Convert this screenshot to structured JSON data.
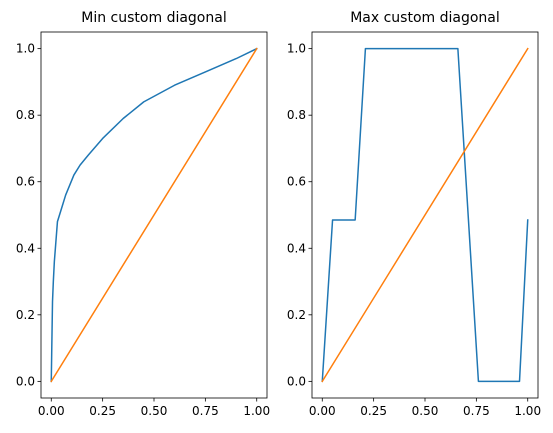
{
  "chart_data": [
    {
      "type": "line",
      "title": "Min custom diagonal",
      "xlabel": "",
      "ylabel": "",
      "xlim": [
        -0.05,
        1.05
      ],
      "ylim": [
        -0.05,
        1.05
      ],
      "xticks": [
        0.0,
        0.25,
        0.5,
        0.75,
        1.0
      ],
      "xtick_labels": [
        "0.00",
        "0.25",
        "0.50",
        "0.75",
        "1.00"
      ],
      "yticks": [
        0.0,
        0.2,
        0.4,
        0.6,
        0.8,
        1.0
      ],
      "ytick_labels": [
        "0.0",
        "0.2",
        "0.4",
        "0.6",
        "0.8",
        "1.0"
      ],
      "grid": false,
      "series": [
        {
          "color": "#1f77b4",
          "x": [
            0,
            0.002,
            0.004,
            0.006,
            0.01,
            0.015,
            0.02,
            0.03,
            0.05,
            0.07,
            0.09,
            0.11,
            0.14,
            0.18,
            0.25,
            0.35,
            0.45,
            0.6,
            0.75,
            0.9,
            1.0
          ],
          "y": [
            0,
            0.08,
            0.16,
            0.24,
            0.3,
            0.36,
            0.4,
            0.48,
            0.52,
            0.56,
            0.59,
            0.62,
            0.65,
            0.68,
            0.73,
            0.79,
            0.84,
            0.89,
            0.93,
            0.97,
            1.0
          ]
        },
        {
          "color": "#ff7f0e",
          "x": [
            0,
            1
          ],
          "y": [
            0,
            1
          ]
        }
      ]
    },
    {
      "type": "line",
      "title": "Max custom diagonal",
      "xlabel": "",
      "ylabel": "",
      "xlim": [
        -0.05,
        1.05
      ],
      "ylim": [
        -0.05,
        1.05
      ],
      "xticks": [
        0.0,
        0.25,
        0.5,
        0.75,
        1.0
      ],
      "xtick_labels": [
        "0.00",
        "0.25",
        "0.50",
        "0.75",
        "1.00"
      ],
      "yticks": [
        0.0,
        0.2,
        0.4,
        0.6,
        0.8,
        1.0
      ],
      "ytick_labels": [
        "0.0",
        "0.2",
        "0.4",
        "0.6",
        "0.8",
        "1.0"
      ],
      "grid": false,
      "series": [
        {
          "color": "#1f77b4",
          "x": [
            0,
            0.05,
            0.16,
            0.21,
            0.66,
            0.76,
            0.96,
            1.0
          ],
          "y": [
            0,
            0.485,
            0.485,
            1.0,
            1.0,
            0.0,
            0.0,
            0.485
          ]
        },
        {
          "color": "#ff7f0e",
          "x": [
            0,
            1
          ],
          "y": [
            0,
            1
          ]
        }
      ]
    }
  ]
}
